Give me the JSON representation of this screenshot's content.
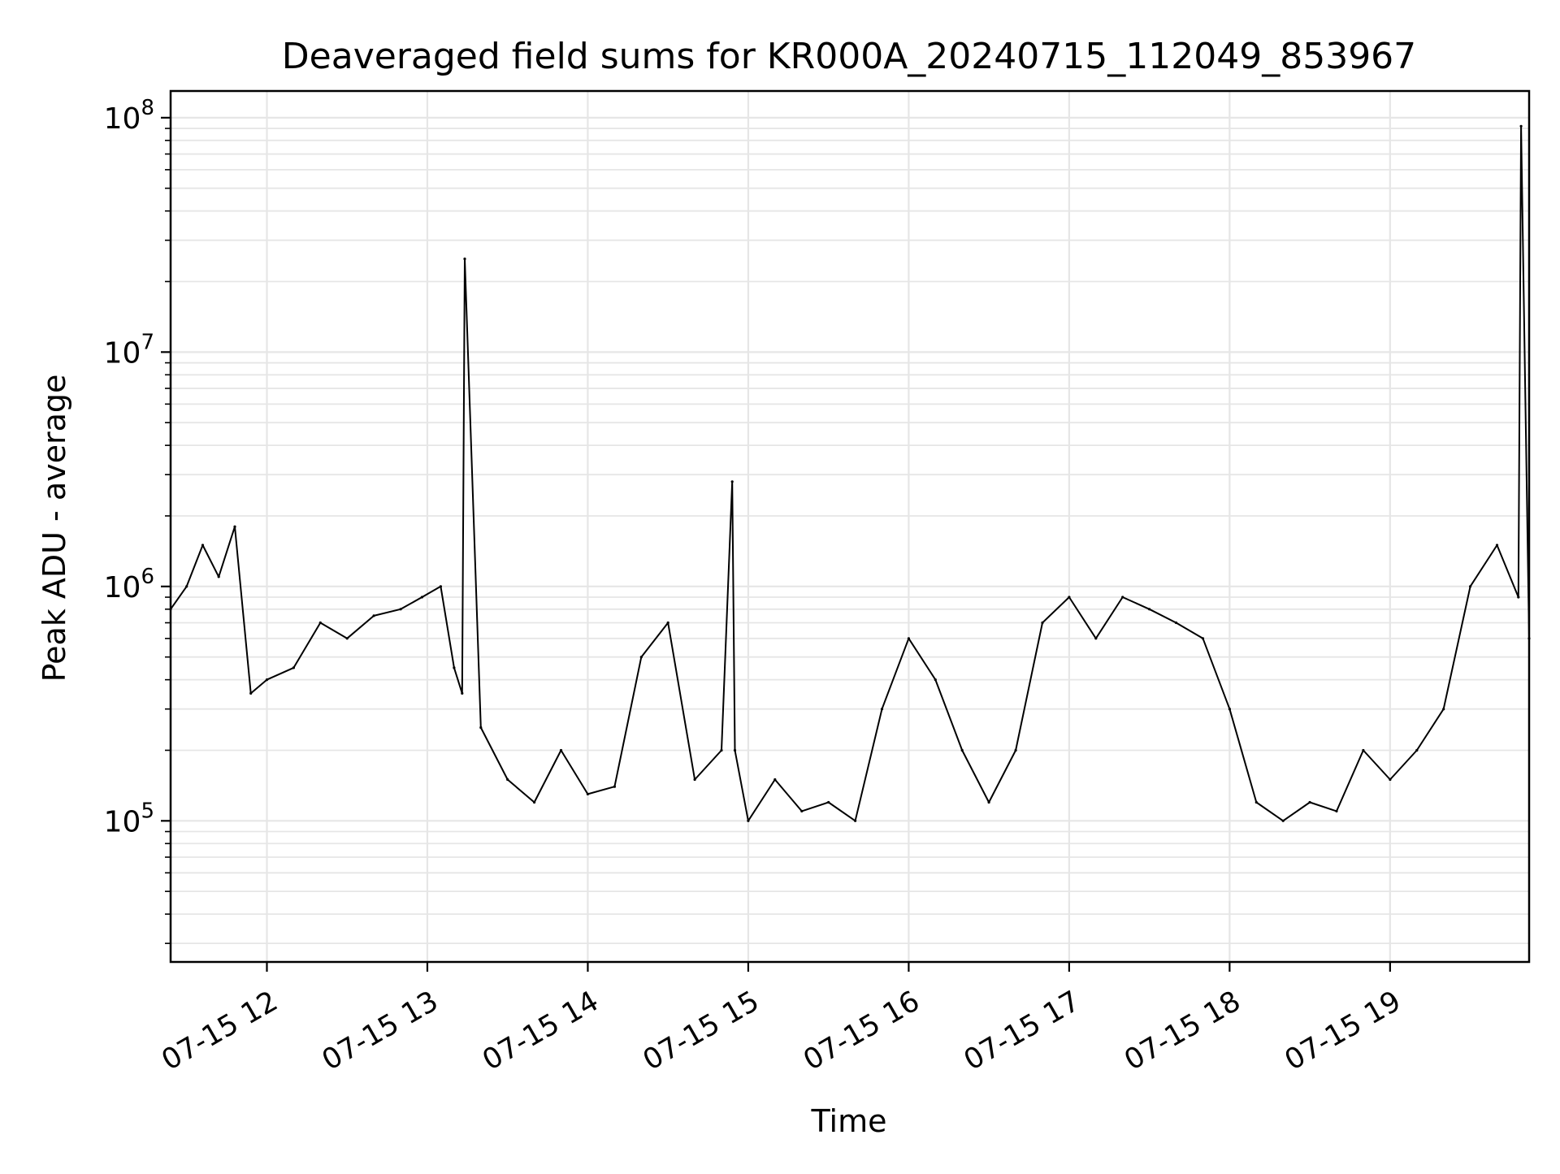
{
  "chart_data": {
    "type": "line",
    "title": "Deaveraged field sums for KR000A_20240715_112049_853967",
    "xlabel": "Time",
    "ylabel": "Peak ADU - average",
    "xlim": [
      "2024-07-15 11:24",
      "2024-07-15 19:52"
    ],
    "ylim": [
      25000,
      130000000
    ],
    "y_scale": "log",
    "grid": true,
    "line_color": "#000000",
    "grid_color": "#e6e6e6",
    "x_ticks": [
      {
        "t": "2024-07-15 12:00",
        "label": "07-15 12"
      },
      {
        "t": "2024-07-15 13:00",
        "label": "07-15 13"
      },
      {
        "t": "2024-07-15 14:00",
        "label": "07-15 14"
      },
      {
        "t": "2024-07-15 15:00",
        "label": "07-15 15"
      },
      {
        "t": "2024-07-15 16:00",
        "label": "07-15 16"
      },
      {
        "t": "2024-07-15 17:00",
        "label": "07-15 17"
      },
      {
        "t": "2024-07-15 18:00",
        "label": "07-15 18"
      },
      {
        "t": "2024-07-15 19:00",
        "label": "07-15 19"
      }
    ],
    "y_ticks": [
      {
        "value": 100000,
        "base": "10",
        "exp": "5"
      },
      {
        "value": 1000000,
        "base": "10",
        "exp": "6"
      },
      {
        "value": 10000000,
        "base": "10",
        "exp": "7"
      },
      {
        "value": 100000000,
        "base": "10",
        "exp": "8"
      }
    ],
    "series": [
      {
        "x": [
          "2024-07-15 11:24",
          "2024-07-15 11:30",
          "2024-07-15 11:36",
          "2024-07-15 11:42",
          "2024-07-15 11:48",
          "2024-07-15 11:54",
          "2024-07-15 12:00",
          "2024-07-15 12:10",
          "2024-07-15 12:20",
          "2024-07-15 12:30",
          "2024-07-15 12:40",
          "2024-07-15 12:50",
          "2024-07-15 12:58",
          "2024-07-15 13:05",
          "2024-07-15 13:10",
          "2024-07-15 13:13",
          "2024-07-15 13:14",
          "2024-07-15 13:20",
          "2024-07-15 13:30",
          "2024-07-15 13:40",
          "2024-07-15 13:50",
          "2024-07-15 14:00",
          "2024-07-15 14:10",
          "2024-07-15 14:20",
          "2024-07-15 14:30",
          "2024-07-15 14:40",
          "2024-07-15 14:50",
          "2024-07-15 14:54",
          "2024-07-15 14:55",
          "2024-07-15 15:00",
          "2024-07-15 15:10",
          "2024-07-15 15:20",
          "2024-07-15 15:30",
          "2024-07-15 15:40",
          "2024-07-15 15:50",
          "2024-07-15 16:00",
          "2024-07-15 16:10",
          "2024-07-15 16:20",
          "2024-07-15 16:30",
          "2024-07-15 16:40",
          "2024-07-15 16:50",
          "2024-07-15 17:00",
          "2024-07-15 17:10",
          "2024-07-15 17:20",
          "2024-07-15 17:30",
          "2024-07-15 17:40",
          "2024-07-15 17:50",
          "2024-07-15 18:00",
          "2024-07-15 18:10",
          "2024-07-15 18:20",
          "2024-07-15 18:30",
          "2024-07-15 18:40",
          "2024-07-15 18:50",
          "2024-07-15 19:00",
          "2024-07-15 19:10",
          "2024-07-15 19:20",
          "2024-07-15 19:30",
          "2024-07-15 19:40",
          "2024-07-15 19:48",
          "2024-07-15 19:49",
          "2024-07-15 19:52"
        ],
        "y": [
          800000,
          1000000,
          1500000,
          1100000,
          1800000,
          350000,
          400000,
          450000,
          700000,
          600000,
          750000,
          800000,
          900000,
          1000000,
          450000,
          350000,
          25000000,
          250000,
          150000,
          120000,
          200000,
          130000,
          140000,
          500000,
          700000,
          150000,
          200000,
          2800000,
          200000,
          100000,
          150000,
          110000,
          120000,
          100000,
          300000,
          600000,
          400000,
          200000,
          120000,
          200000,
          700000,
          900000,
          600000,
          900000,
          800000,
          700000,
          600000,
          300000,
          120000,
          100000,
          120000,
          110000,
          200000,
          150000,
          200000,
          300000,
          1000000,
          1500000,
          900000,
          92000000,
          600000
        ]
      }
    ]
  }
}
